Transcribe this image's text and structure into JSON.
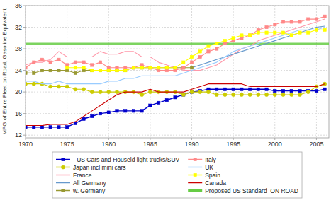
{
  "chart_data": {
    "type": "line",
    "y_label": "MPG of Entire Fleet on Road, Gasoline Equivalent",
    "xlim": [
      1970,
      2006.5
    ],
    "ylim": [
      11.5,
      36
    ],
    "xticks": [
      1970,
      1975,
      1980,
      1985,
      1990,
      1995,
      2000,
      2005
    ],
    "yticks": [
      12,
      16,
      20,
      24,
      28,
      32,
      36
    ],
    "grid": true,
    "legend": "bottom",
    "series": [
      {
        "name": " -US Cars and Houseld light trucks/SUV",
        "color": "#0000CC",
        "marker": "square",
        "x": [
          1970,
          1971,
          1972,
          1973,
          1974,
          1975,
          1976,
          1977,
          1978,
          1979,
          1980,
          1981,
          1982,
          1983,
          1984,
          1985,
          1986,
          1987,
          1988,
          1989,
          1990,
          1991,
          1992,
          1993,
          1994,
          1995,
          1996,
          1997,
          1998,
          1999,
          2000,
          2001,
          2002,
          2003,
          2004,
          2005,
          2006
        ],
        "values": [
          13.5,
          13.5,
          13.5,
          13.5,
          13.5,
          13.5,
          14.2,
          15.0,
          15.5,
          16.0,
          16.2,
          16.5,
          16.5,
          16.5,
          16.5,
          17.5,
          18.0,
          18.5,
          19.0,
          19.5,
          20.0,
          20.2,
          20.5,
          20.5,
          20.5,
          20.5,
          20.5,
          20.5,
          20.5,
          20.5,
          20.2,
          20.2,
          20.2,
          20.2,
          20.2,
          20.2,
          20.5
        ]
      },
      {
        "name": "Japan incl mini cars",
        "color": "#CCCC00",
        "marker": "circle",
        "x": [
          1970,
          1971,
          1972,
          1973,
          1974,
          1975,
          1976,
          1977,
          1978,
          1979,
          1980,
          1981,
          1982,
          1983,
          1984,
          1985,
          1986,
          1987,
          1988,
          1989,
          1990,
          1991,
          1992,
          1993,
          1994,
          1995,
          1996,
          1997,
          1998,
          1999,
          2000,
          2001,
          2002,
          2003,
          2004,
          2005,
          2006
        ],
        "values": [
          21.5,
          21.5,
          21.5,
          21.0,
          21.0,
          21.0,
          20.5,
          20.5,
          20.0,
          20.0,
          20.0,
          20.0,
          20.0,
          20.0,
          19.5,
          20.0,
          20.0,
          20.0,
          20.0,
          19.5,
          20.0,
          20.0,
          20.0,
          19.5,
          19.5,
          19.5,
          19.5,
          19.5,
          19.5,
          19.5,
          19.5,
          19.5,
          19.5,
          19.5,
          20.0,
          21.0,
          21.5
        ]
      },
      {
        "name": "France",
        "color": "#FF99AA",
        "x": [
          1970,
          1971,
          1972,
          1973,
          1974,
          1975,
          1976,
          1977,
          1978,
          1979,
          1980,
          1981,
          1982,
          1983,
          1984,
          1985,
          1986,
          1987,
          1988,
          1989,
          1990,
          1991,
          1992,
          1993,
          1994,
          1995,
          1996,
          1997,
          1998,
          1999,
          2000,
          2001,
          2002,
          2003,
          2004,
          2005,
          2006
        ],
        "values": [
          25.0,
          25.5,
          25.5,
          26.0,
          27.5,
          26.5,
          26.5,
          26.5,
          26.5,
          27.5,
          27.0,
          27.0,
          27.5,
          27.5,
          26.5,
          26.5,
          25.5,
          25.0,
          24.5,
          24.0,
          24.0,
          24.0,
          24.5,
          25.0,
          26.0,
          27.0,
          28.0,
          28.5,
          29.5,
          30.0,
          30.5,
          31.0,
          31.5,
          32.0,
          32.5,
          33.0,
          33.5
        ]
      },
      {
        "name": "All Germany",
        "color": "#6699CC",
        "x": [
          1990,
          1991,
          1992,
          1993,
          1994,
          1995,
          1996,
          1997,
          1998,
          1999,
          2000,
          2001,
          2002,
          2003,
          2004,
          2005,
          2006
        ],
        "values": [
          24.5,
          25.0,
          25.5,
          26.0,
          26.5,
          27.0,
          27.5,
          28.0,
          28.5,
          29.0,
          29.5,
          30.0,
          30.5,
          31.0,
          31.5,
          32.0,
          32.2
        ]
      },
      {
        "name": "w. Germany",
        "color": "#999933",
        "marker": "square",
        "x": [
          1970,
          1971,
          1972,
          1973,
          1974,
          1975,
          1976,
          1977,
          1978,
          1979,
          1980,
          1981,
          1982,
          1983,
          1984,
          1985,
          1986,
          1987,
          1988,
          1989,
          1990
        ],
        "values": [
          23.5,
          23.5,
          24.0,
          24.0,
          24.0,
          24.0,
          23.5,
          24.0,
          24.0,
          24.0,
          24.0,
          24.0,
          24.0,
          24.5,
          24.5,
          24.5,
          24.5,
          24.5,
          24.5,
          24.5,
          24.5
        ]
      },
      {
        "name": "Italy",
        "color": "#FF8888",
        "marker": "square",
        "x": [
          1970,
          1971,
          1972,
          1973,
          1974,
          1975,
          1976,
          1977,
          1978,
          1979,
          1980,
          1981,
          1982,
          1983,
          1984,
          1985,
          1986,
          1987,
          1988,
          1989,
          1990,
          1991,
          1992,
          1993,
          1994,
          1995,
          1996,
          1997,
          1998,
          1999,
          2000,
          2001,
          2002,
          2003,
          2004,
          2005,
          2006
        ],
        "values": [
          24.5,
          25.5,
          26.0,
          25.5,
          26.0,
          25.0,
          25.5,
          25.5,
          25.0,
          25.5,
          24.5,
          24.5,
          24.5,
          24.5,
          25.0,
          24.5,
          24.0,
          24.0,
          24.0,
          24.5,
          25.5,
          26.5,
          27.5,
          28.0,
          29.0,
          29.5,
          30.0,
          30.5,
          31.5,
          32.0,
          32.5,
          33.0,
          33.0,
          33.0,
          33.5,
          33.5,
          34.0
        ]
      },
      {
        "name": "UK",
        "color": "#99CCFF",
        "x": [
          1970,
          1971,
          1972,
          1973,
          1974,
          1975,
          1976,
          1977,
          1978,
          1979,
          1980,
          1981,
          1982,
          1983,
          1984,
          1985,
          1986,
          1987,
          1988,
          1989,
          1990,
          1991,
          1992,
          1993,
          1994,
          1995,
          1996,
          1997,
          1998,
          1999,
          2000,
          2001,
          2002,
          2003,
          2004,
          2005,
          2006
        ],
        "values": [
          22.0,
          22.0,
          21.5,
          21.5,
          22.0,
          21.5,
          21.5,
          21.5,
          21.5,
          21.5,
          22.0,
          22.0,
          22.5,
          22.5,
          23.0,
          23.0,
          23.0,
          23.0,
          23.0,
          23.5,
          24.0,
          24.5,
          25.0,
          25.5,
          26.5,
          27.5,
          28.0,
          28.5,
          29.0,
          29.5,
          30.0,
          30.5,
          31.0,
          31.5,
          31.5,
          31.5,
          32.0
        ]
      },
      {
        "name": "Spain",
        "color": "#FFFF00",
        "marker": "square",
        "x": [
          1975,
          1976,
          1977,
          1978,
          1979,
          1980,
          1981,
          1982,
          1983,
          1984,
          1985,
          1986,
          1987,
          1988,
          1989,
          1990,
          1991,
          1992,
          1993,
          1994,
          1995,
          1996,
          1997,
          1998,
          1999,
          2000,
          2001,
          2002,
          2003,
          2004,
          2005,
          2006
        ],
        "values": [
          24.5,
          24.5,
          24.5,
          24.0,
          24.0,
          24.0,
          24.0,
          24.0,
          24.5,
          24.5,
          24.5,
          24.5,
          24.5,
          24.5,
          25.5,
          26.5,
          27.5,
          28.5,
          29.0,
          29.5,
          30.0,
          30.5,
          30.5,
          31.0,
          31.0,
          31.0,
          31.0,
          30.5,
          31.0,
          31.0,
          31.5,
          31.5
        ]
      },
      {
        "name": "Canada",
        "color": "#CC0000",
        "x": [
          1970,
          1971,
          1972,
          1973,
          1974,
          1975,
          1976,
          1977,
          1978,
          1979,
          1980,
          1981,
          1982,
          1983,
          1984,
          1985,
          1986,
          1987,
          1988,
          1989,
          1990,
          1991,
          1992,
          1993,
          1994,
          1995,
          1996,
          1997,
          1998,
          1999,
          2000,
          2001,
          2002,
          2003,
          2004,
          2005,
          2006
        ],
        "values": [
          13.8,
          13.8,
          13.8,
          14.0,
          14.0,
          14.0,
          14.5,
          15.5,
          16.5,
          17.5,
          18.5,
          19.5,
          20.0,
          20.0,
          20.0,
          20.5,
          20.0,
          20.0,
          20.0,
          20.0,
          20.5,
          21.0,
          21.5,
          21.5,
          21.5,
          21.5,
          21.5,
          21.0,
          21.0,
          21.0,
          21.0,
          21.0,
          21.0,
          21.0,
          21.0,
          21.0,
          21.5
        ]
      },
      {
        "name": "Proposed US Standard  ON ROAD",
        "type": "hline",
        "color": "#66CC44",
        "values": [
          28.9
        ]
      }
    ]
  }
}
